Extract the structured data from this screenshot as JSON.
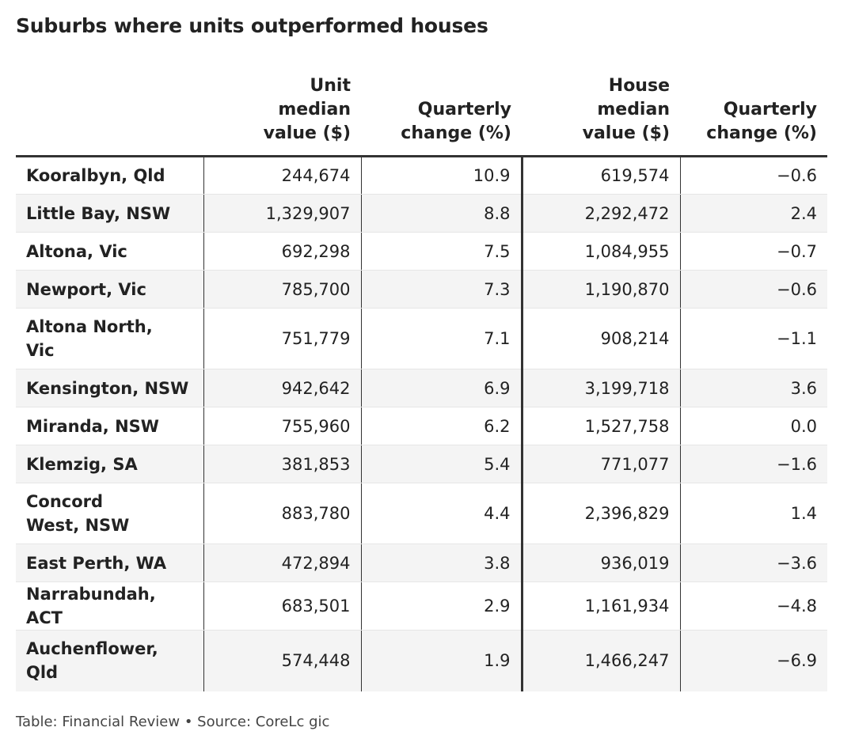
{
  "title": "Suburbs where units outperformed houses",
  "footer": "Table: Financial Review • Source: CoreLc gic",
  "chart_data": {
    "type": "table",
    "title": "Suburbs where units outperformed houses",
    "columns": [
      {
        "key": "suburb",
        "label": ""
      },
      {
        "key": "unit_value",
        "label": "Unit median value ($)"
      },
      {
        "key": "unit_change",
        "label": "Quarterly change (%)"
      },
      {
        "key": "house_value",
        "label": "House median value ($)"
      },
      {
        "key": "house_change",
        "label": "Quarterly change (%)"
      }
    ],
    "rows": [
      {
        "suburb": "Kooralbyn, Qld",
        "unit_value": "244,674",
        "unit_change": "10.9",
        "house_value": "619,574",
        "house_change": "−0.6"
      },
      {
        "suburb": "Little Bay, NSW",
        "unit_value": "1,329,907",
        "unit_change": "8.8",
        "house_value": "2,292,472",
        "house_change": "2.4"
      },
      {
        "suburb": "Altona, Vic",
        "unit_value": "692,298",
        "unit_change": "7.5",
        "house_value": "1,084,955",
        "house_change": "−0.7"
      },
      {
        "suburb": "Newport, Vic",
        "unit_value": "785,700",
        "unit_change": "7.3",
        "house_value": "1,190,870",
        "house_change": "−0.6"
      },
      {
        "suburb": "Altona North, Vic",
        "unit_value": "751,779",
        "unit_change": "7.1",
        "house_value": "908,214",
        "house_change": "−1.1"
      },
      {
        "suburb": "Kensington, NSW",
        "unit_value": "942,642",
        "unit_change": "6.9",
        "house_value": "3,199,718",
        "house_change": "3.6"
      },
      {
        "suburb": "Miranda, NSW",
        "unit_value": "755,960",
        "unit_change": "6.2",
        "house_value": "1,527,758",
        "house_change": "0.0"
      },
      {
        "suburb": "Klemzig, SA",
        "unit_value": "381,853",
        "unit_change": "5.4",
        "house_value": "771,077",
        "house_change": "−1.6"
      },
      {
        "suburb": "Concord West, NSW",
        "unit_value": "883,780",
        "unit_change": "4.4",
        "house_value": "2,396,829",
        "house_change": "1.4"
      },
      {
        "suburb": "East Perth, WA",
        "unit_value": "472,894",
        "unit_change": "3.8",
        "house_value": "936,019",
        "house_change": "−3.6"
      },
      {
        "suburb": "Narrabundah, ACT",
        "unit_value": "683,501",
        "unit_change": "2.9",
        "house_value": "1,161,934",
        "house_change": "−4.8"
      },
      {
        "suburb": "Auchenflower, Qld",
        "unit_value": "574,448",
        "unit_change": "1.9",
        "house_value": "1,466,247",
        "house_change": "−6.9"
      }
    ]
  }
}
